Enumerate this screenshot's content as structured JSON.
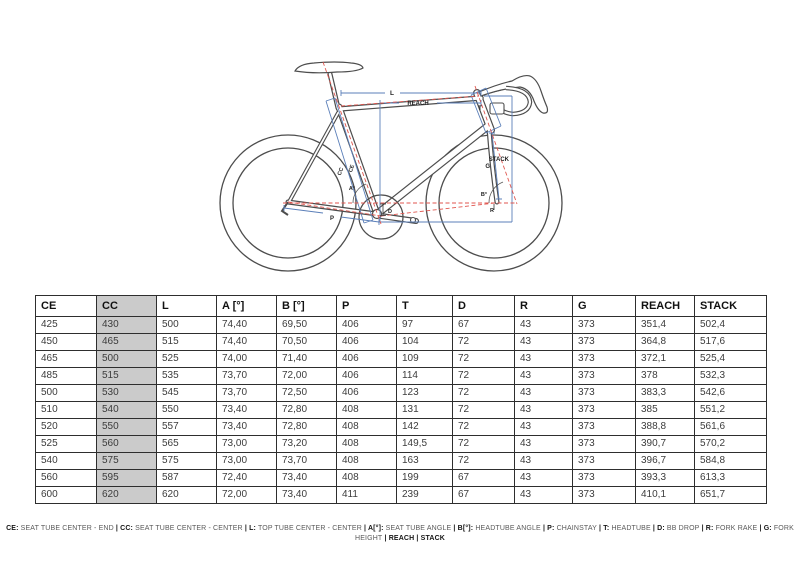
{
  "diagram": {
    "labels": {
      "l": "L",
      "reach": "REACH",
      "t": "T",
      "stack": "STACK",
      "g": "G",
      "cc": "CC",
      "ce": "CE",
      "a": "A°",
      "b": "B°",
      "d": "D",
      "p": "P",
      "r": "R"
    },
    "colors": {
      "outline": "#4d4d4d",
      "measure": "#5b7fb9",
      "dashed": "#e0564f"
    }
  },
  "table": {
    "columns": [
      "CE",
      "CC",
      "L",
      "A [°]",
      "B [°]",
      "P",
      "T",
      "D",
      "R",
      "G",
      "REACH",
      "STACK"
    ],
    "highlight_column_index": 1,
    "highlight_color": "#cbcbcb",
    "border_color": "#2e2e2e",
    "rows": [
      [
        "425",
        "430",
        "500",
        "74,40",
        "69,50",
        "406",
        "97",
        "67",
        "43",
        "373",
        "351,4",
        "502,4"
      ],
      [
        "450",
        "465",
        "515",
        "74,40",
        "70,50",
        "406",
        "104",
        "72",
        "43",
        "373",
        "364,8",
        "517,6"
      ],
      [
        "465",
        "500",
        "525",
        "74,00",
        "71,40",
        "406",
        "109",
        "72",
        "43",
        "373",
        "372,1",
        "525,4"
      ],
      [
        "485",
        "515",
        "535",
        "73,70",
        "72,00",
        "406",
        "114",
        "72",
        "43",
        "373",
        "378",
        "532,3"
      ],
      [
        "500",
        "530",
        "545",
        "73,70",
        "72,50",
        "406",
        "123",
        "72",
        "43",
        "373",
        "383,3",
        "542,6"
      ],
      [
        "510",
        "540",
        "550",
        "73,40",
        "72,80",
        "408",
        "131",
        "72",
        "43",
        "373",
        "385",
        "551,2"
      ],
      [
        "520",
        "550",
        "557",
        "73,40",
        "72,80",
        "408",
        "142",
        "72",
        "43",
        "373",
        "388,8",
        "561,6"
      ],
      [
        "525",
        "560",
        "565",
        "73,00",
        "73,20",
        "408",
        "149,5",
        "72",
        "43",
        "373",
        "390,7",
        "570,2"
      ],
      [
        "540",
        "575",
        "575",
        "73,00",
        "73,70",
        "408",
        "163",
        "72",
        "43",
        "373",
        "396,7",
        "584,8"
      ],
      [
        "560",
        "595",
        "587",
        "72,40",
        "73,40",
        "408",
        "199",
        "67",
        "43",
        "373",
        "393,3",
        "613,3"
      ],
      [
        "600",
        "620",
        "620",
        "72,00",
        "73,40",
        "411",
        "239",
        "67",
        "43",
        "373",
        "410,1",
        "651,7"
      ]
    ]
  },
  "legend": {
    "separator": "|",
    "items": [
      {
        "key": "CE:",
        "desc": "SEAT TUBE CENTER - END"
      },
      {
        "key": "CC:",
        "desc": "SEAT TUBE CENTER - CENTER"
      },
      {
        "key": "L:",
        "desc": "TOP TUBE CENTER - CENTER"
      },
      {
        "key": "A[°]:",
        "desc": "SEAT TUBE ANGLE"
      },
      {
        "key": "B[°]:",
        "desc": "HEADTUBE ANGLE"
      },
      {
        "key": "P:",
        "desc": "CHAINSTAY"
      },
      {
        "key": "T:",
        "desc": "HEADTUBE"
      },
      {
        "key": "D:",
        "desc": "BB DROP"
      },
      {
        "key": "R:",
        "desc": "FORK RAKE"
      },
      {
        "key": "G:",
        "desc": "FORK HEIGHT"
      },
      {
        "key": "REACH",
        "desc": ""
      },
      {
        "key": "STACK",
        "desc": ""
      }
    ]
  }
}
